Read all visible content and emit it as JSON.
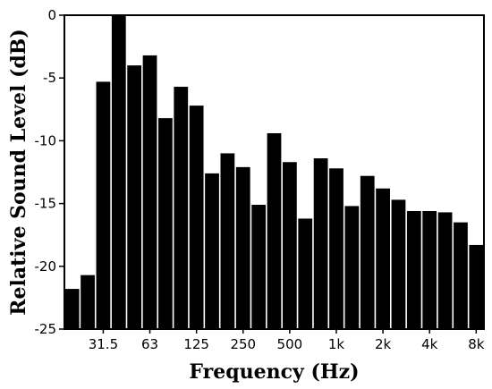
{
  "chart_data": {
    "type": "bar",
    "title": "",
    "xlabel": "Frequency (Hz)",
    "ylabel": "Relative Sound Level (dB)",
    "ylim": [
      -25,
      0
    ],
    "yticks": [
      0,
      -5,
      -10,
      -15,
      -20,
      -25
    ],
    "xticks": [
      "31.5",
      "63",
      "125",
      "250",
      "500",
      "1k",
      "2k",
      "4k",
      "8k"
    ],
    "bar_color": "#000000",
    "grid": false,
    "series": [
      {
        "values": [
          -21.8,
          -20.7,
          -5.3,
          0.0,
          -4.0,
          -3.2,
          -8.2,
          -5.7,
          -7.2,
          -12.6,
          -11.0,
          -12.1,
          -15.1,
          -9.4,
          -11.7,
          -16.2,
          -11.4,
          -12.2,
          -15.2,
          -12.8,
          -13.8,
          -14.7,
          -15.6,
          -15.6,
          -15.7,
          -16.5,
          -18.3
        ]
      }
    ]
  }
}
